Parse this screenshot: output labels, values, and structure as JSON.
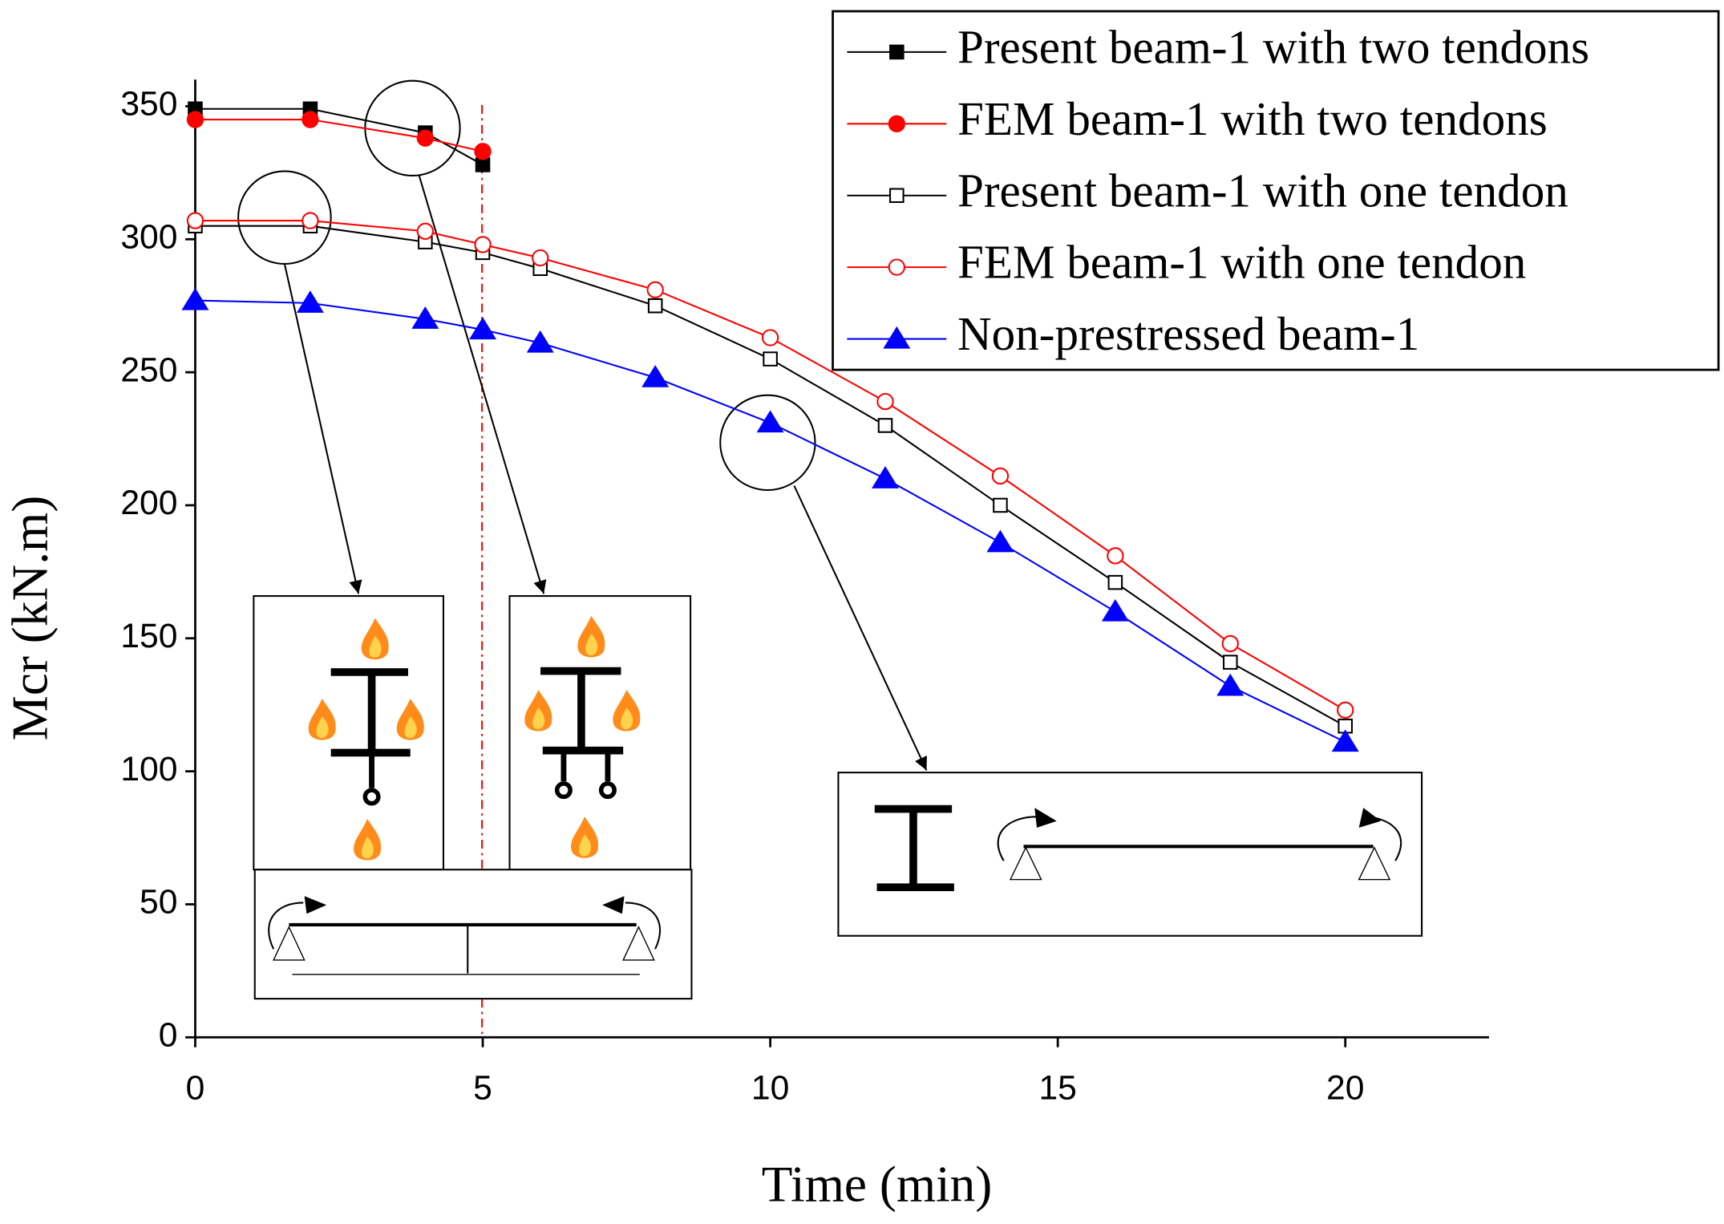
{
  "chart_data": {
    "type": "line",
    "xlabel": "Time (min)",
    "ylabel": "Mcr (kN.m)",
    "xlim": [
      0,
      22.5
    ],
    "xticks": [
      0,
      5,
      10,
      15,
      20
    ],
    "ylim": [
      0,
      360
    ],
    "yticks": [
      0,
      50,
      100,
      150,
      200,
      250,
      300,
      350
    ],
    "legend": "upper right",
    "series": [
      {
        "name": "Present beam-1 with two tendons",
        "color": "#000000",
        "marker": "square",
        "filled": true,
        "x": [
          0,
          2,
          4,
          5
        ],
        "values": [
          349,
          349,
          340,
          328
        ]
      },
      {
        "name": "FEM beam-1 with two tendons",
        "color": "#ff0000",
        "marker": "circle",
        "filled": true,
        "x": [
          0,
          2,
          4,
          5
        ],
        "values": [
          345,
          345,
          338,
          333
        ]
      },
      {
        "name": "Present beam-1 with one tendon",
        "color": "#000000",
        "marker": "square",
        "filled": false,
        "x": [
          0,
          2,
          4,
          5,
          6,
          8,
          10,
          12,
          14,
          16,
          18,
          20
        ],
        "values": [
          305,
          305,
          299,
          295,
          289,
          275,
          255,
          230,
          200,
          171,
          141,
          117
        ]
      },
      {
        "name": "FEM beam-1 with one tendon",
        "color": "#ff0000",
        "marker": "circle",
        "filled": false,
        "x": [
          0,
          2,
          4,
          5,
          6,
          8,
          10,
          12,
          14,
          16,
          18,
          20
        ],
        "values": [
          307,
          307,
          303,
          298,
          293,
          281,
          263,
          239,
          211,
          181,
          148,
          123
        ]
      },
      {
        "name": "Non-prestressed beam-1",
        "color": "#0000ff",
        "marker": "triangle",
        "filled": true,
        "x": [
          0,
          2,
          4,
          5,
          6,
          8,
          10,
          12,
          14,
          16,
          18,
          20
        ],
        "values": [
          277,
          276,
          270,
          266,
          261,
          248,
          231,
          210,
          186,
          160,
          132,
          111
        ]
      }
    ]
  }
}
